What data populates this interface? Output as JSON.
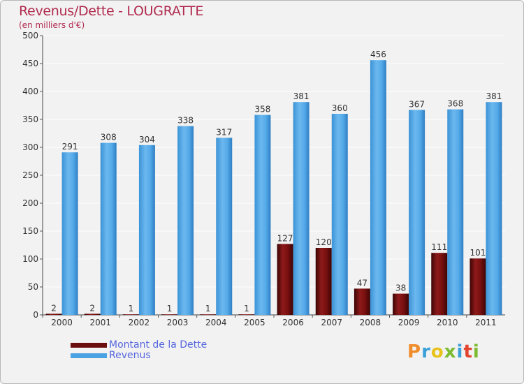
{
  "title": "Revenus/Dette - LOUGRATTE",
  "subtitle": "(en milliers d'€)",
  "colors": {
    "dette": "#6b0d0d",
    "revenus": "#4ba2e2",
    "accent": "#b02a4e"
  },
  "legend": [
    {
      "label": "Montant de la Dette",
      "color": "#6b0d0d"
    },
    {
      "label": "Revenus",
      "color": "#4ba2e2"
    }
  ],
  "logo": {
    "text": "Proxiti"
  },
  "chart_data": {
    "type": "bar",
    "title": "Revenus/Dette - LOUGRATTE",
    "ylabel": "(en milliers d'€)",
    "xlabel": "",
    "ylim": [
      0,
      500
    ],
    "yticks": [
      0,
      50,
      100,
      150,
      200,
      250,
      300,
      350,
      400,
      450,
      500
    ],
    "grid": true,
    "legend_position": "bottom-left",
    "categories": [
      "2000",
      "2001",
      "2002",
      "2003",
      "2004",
      "2005",
      "2006",
      "2007",
      "2008",
      "2009",
      "2010",
      "2011"
    ],
    "series": [
      {
        "name": "Montant de la Dette",
        "values": [
          2,
          2,
          1,
          1,
          1,
          1,
          127,
          120,
          47,
          38,
          111,
          101
        ]
      },
      {
        "name": "Revenus",
        "values": [
          291,
          308,
          304,
          338,
          317,
          358,
          381,
          360,
          456,
          367,
          368,
          381
        ]
      }
    ]
  }
}
